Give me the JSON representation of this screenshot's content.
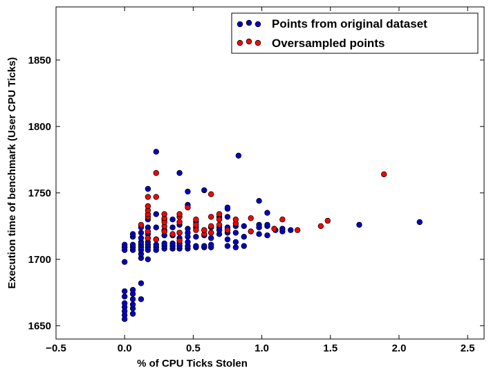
{
  "chart_data": {
    "type": "scatter",
    "title": "",
    "xlabel": "% of CPU Ticks Stolen",
    "ylabel": "Execution time of benchmark (User CPU Ticks)",
    "xlim": [
      -0.5,
      2.62
    ],
    "ylim": [
      1640,
      1890
    ],
    "xticks": [
      {
        "value": -0.5,
        "label": "−0.5"
      },
      {
        "value": 0.0,
        "label": "0.0"
      },
      {
        "value": 0.5,
        "label": "0.5"
      },
      {
        "value": 1.0,
        "label": "1.0"
      },
      {
        "value": 1.5,
        "label": "1.5"
      },
      {
        "value": 2.0,
        "label": "2.0"
      },
      {
        "value": 2.5,
        "label": "2.5"
      }
    ],
    "yticks": [
      {
        "value": 1650,
        "label": "1650"
      },
      {
        "value": 1700,
        "label": "1700"
      },
      {
        "value": 1750,
        "label": "1750"
      },
      {
        "value": 1800,
        "label": "1800"
      },
      {
        "value": 1850,
        "label": "1850"
      }
    ],
    "grid": false,
    "legend_position": "top-right",
    "series": [
      {
        "name": "Points from original dataset",
        "color": "#0000cc",
        "points": [
          [
            0,
            1655
          ],
          [
            0,
            1658
          ],
          [
            0,
            1661
          ],
          [
            0,
            1664
          ],
          [
            0,
            1667
          ],
          [
            0,
            1672
          ],
          [
            0,
            1676
          ],
          [
            0,
            1698
          ],
          [
            0,
            1707
          ],
          [
            0,
            1709
          ],
          [
            0,
            1711
          ],
          [
            0.06,
            1659
          ],
          [
            0.06,
            1663
          ],
          [
            0.06,
            1666
          ],
          [
            0.06,
            1670
          ],
          [
            0.06,
            1674
          ],
          [
            0.06,
            1677
          ],
          [
            0.06,
            1707
          ],
          [
            0.06,
            1709
          ],
          [
            0.06,
            1711
          ],
          [
            0.06,
            1717
          ],
          [
            0.06,
            1719
          ],
          [
            0.12,
            1670
          ],
          [
            0.12,
            1682
          ],
          [
            0.12,
            1701
          ],
          [
            0.12,
            1704
          ],
          [
            0.12,
            1707
          ],
          [
            0.12,
            1709
          ],
          [
            0.12,
            1711
          ],
          [
            0.12,
            1713
          ],
          [
            0.12,
            1716
          ],
          [
            0.12,
            1720
          ],
          [
            0.12,
            1724
          ],
          [
            0.17,
            1700
          ],
          [
            0.17,
            1707
          ],
          [
            0.17,
            1709
          ],
          [
            0.17,
            1711
          ],
          [
            0.17,
            1713
          ],
          [
            0.17,
            1716
          ],
          [
            0.17,
            1719
          ],
          [
            0.17,
            1724
          ],
          [
            0.17,
            1730
          ],
          [
            0.17,
            1753
          ],
          [
            0.23,
            1707
          ],
          [
            0.23,
            1709
          ],
          [
            0.23,
            1711
          ],
          [
            0.23,
            1715
          ],
          [
            0.23,
            1724
          ],
          [
            0.23,
            1734
          ],
          [
            0.23,
            1781
          ],
          [
            0.29,
            1708
          ],
          [
            0.29,
            1710
          ],
          [
            0.29,
            1712
          ],
          [
            0.29,
            1718
          ],
          [
            0.29,
            1722
          ],
          [
            0.29,
            1730
          ],
          [
            0.35,
            1708
          ],
          [
            0.35,
            1710
          ],
          [
            0.35,
            1712
          ],
          [
            0.35,
            1718
          ],
          [
            0.35,
            1724
          ],
          [
            0.35,
            1730
          ],
          [
            0.4,
            1708
          ],
          [
            0.4,
            1710
          ],
          [
            0.4,
            1712
          ],
          [
            0.4,
            1716
          ],
          [
            0.4,
            1720
          ],
          [
            0.4,
            1726
          ],
          [
            0.4,
            1765
          ],
          [
            0.46,
            1708
          ],
          [
            0.46,
            1710
          ],
          [
            0.46,
            1713
          ],
          [
            0.46,
            1717
          ],
          [
            0.46,
            1720
          ],
          [
            0.46,
            1723
          ],
          [
            0.46,
            1741
          ],
          [
            0.46,
            1751
          ],
          [
            0.52,
            1709
          ],
          [
            0.52,
            1710
          ],
          [
            0.52,
            1717
          ],
          [
            0.52,
            1724
          ],
          [
            0.52,
            1728
          ],
          [
            0.58,
            1709
          ],
          [
            0.58,
            1710
          ],
          [
            0.58,
            1718
          ],
          [
            0.58,
            1722
          ],
          [
            0.58,
            1752
          ],
          [
            0.63,
            1709
          ],
          [
            0.63,
            1711
          ],
          [
            0.63,
            1716
          ],
          [
            0.63,
            1720
          ],
          [
            0.63,
            1724
          ],
          [
            0.69,
            1719
          ],
          [
            0.69,
            1722
          ],
          [
            0.69,
            1724
          ],
          [
            0.69,
            1732
          ],
          [
            0.75,
            1710
          ],
          [
            0.75,
            1715
          ],
          [
            0.75,
            1720
          ],
          [
            0.75,
            1724
          ],
          [
            0.75,
            1732
          ],
          [
            0.75,
            1738
          ],
          [
            0.75,
            1739
          ],
          [
            0.81,
            1709
          ],
          [
            0.81,
            1713
          ],
          [
            0.81,
            1720
          ],
          [
            0.81,
            1725
          ],
          [
            0.83,
            1778
          ],
          [
            0.87,
            1710
          ],
          [
            0.87,
            1717
          ],
          [
            0.87,
            1725
          ],
          [
            0.98,
            1719
          ],
          [
            0.98,
            1724
          ],
          [
            0.98,
            1726
          ],
          [
            0.98,
            1744
          ],
          [
            1.04,
            1718
          ],
          [
            1.04,
            1725
          ],
          [
            1.04,
            1726
          ],
          [
            1.04,
            1735
          ],
          [
            1.1,
            1722
          ],
          [
            1.15,
            1721
          ],
          [
            1.15,
            1723
          ],
          [
            1.21,
            1722
          ],
          [
            1.71,
            1726
          ],
          [
            2.15,
            1728
          ]
        ]
      },
      {
        "name": "Oversampled points",
        "color": "#ff0000",
        "points": [
          [
            0.12,
            1726
          ],
          [
            0.17,
            1716
          ],
          [
            0.17,
            1721
          ],
          [
            0.17,
            1732
          ],
          [
            0.17,
            1734
          ],
          [
            0.17,
            1737
          ],
          [
            0.17,
            1740
          ],
          [
            0.17,
            1747
          ],
          [
            0.23,
            1715
          ],
          [
            0.23,
            1747
          ],
          [
            0.23,
            1765
          ],
          [
            0.29,
            1721
          ],
          [
            0.29,
            1725
          ],
          [
            0.29,
            1728
          ],
          [
            0.29,
            1731
          ],
          [
            0.29,
            1734
          ],
          [
            0.35,
            1719
          ],
          [
            0.4,
            1714
          ],
          [
            0.4,
            1720
          ],
          [
            0.4,
            1728
          ],
          [
            0.4,
            1732
          ],
          [
            0.4,
            1734
          ],
          [
            0.46,
            1739
          ],
          [
            0.52,
            1722
          ],
          [
            0.52,
            1726
          ],
          [
            0.52,
            1730
          ],
          [
            0.58,
            1719
          ],
          [
            0.58,
            1722
          ],
          [
            0.63,
            1720
          ],
          [
            0.63,
            1725
          ],
          [
            0.63,
            1732
          ],
          [
            0.63,
            1749
          ],
          [
            0.69,
            1726
          ],
          [
            0.69,
            1730
          ],
          [
            0.69,
            1734
          ],
          [
            0.75,
            1722
          ],
          [
            0.81,
            1727
          ],
          [
            0.81,
            1730
          ],
          [
            0.92,
            1721
          ],
          [
            0.92,
            1731
          ],
          [
            1.09,
            1723
          ],
          [
            1.15,
            1730
          ],
          [
            1.26,
            1722
          ],
          [
            1.43,
            1725
          ],
          [
            1.48,
            1729
          ],
          [
            1.89,
            1764
          ]
        ]
      }
    ]
  }
}
